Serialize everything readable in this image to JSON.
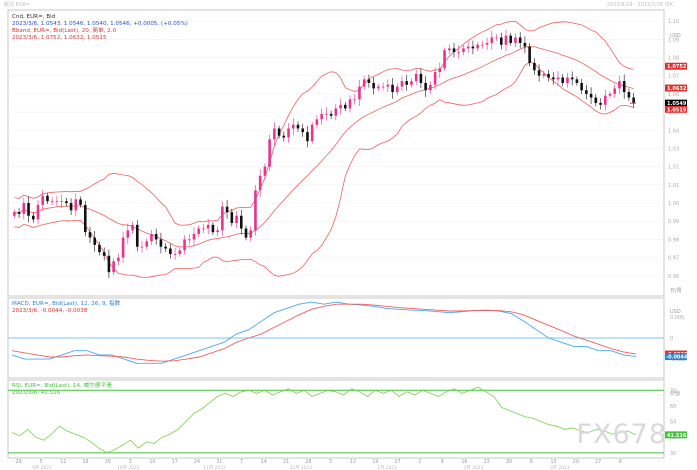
{
  "header": {
    "top_left": "概况 EUR=",
    "top_right": "2022/8/29 - 2023/2/28 日K"
  },
  "main_panel": {
    "line1": "Cnd, EUR=, Bid",
    "line2": "2023/3/6, 1.0543, 1.0546, 1.0540, 1.0546, +0.0005, (+0.05%)",
    "line3": "Bband, EUR=, Bid(Last), 20, 简单, 2.0",
    "line4": "2023/3/6, 1.0752, 1.0632, 1.0515",
    "axis_unit": "USD",
    "price_tags": [
      {
        "label": "1.0752",
        "value": 1.0752,
        "color": "#e03030"
      },
      {
        "label": "1.0632",
        "value": 1.0632,
        "color": "#e03030"
      },
      {
        "label": "1.0549",
        "value": 1.0549,
        "color": "#000000"
      },
      {
        "label": "1.0515",
        "value": 1.0515,
        "color": "#e03030"
      }
    ],
    "corner_label": "日/周"
  },
  "macd_panel": {
    "line1": "MACD, EUR=, Bid(Last), 12, 26, 9, 指数",
    "line2": "2023/3/6, -0.0044, -0.0038",
    "axis_unit": "USD",
    "axis_ticks": [
      "0.005",
      "0",
      "-0.005"
    ],
    "tags": [
      {
        "label": "-0.0038",
        "value": -0.0038,
        "color": "#e03030"
      },
      {
        "label": "-0.0044",
        "value": -0.0044,
        "color": "#2a7fd8"
      }
    ]
  },
  "rsi_panel": {
    "line1": "RSI, EUR=, Bid(Last), 14, 威尔德平滑",
    "line2": "2023/3/6, 41.516",
    "axis_unit": "价值",
    "axis_ticks": [
      "70",
      "60",
      "50",
      "40",
      "30"
    ],
    "tag": {
      "label": "41.516",
      "value": 41.516,
      "color": "#44c23a"
    }
  },
  "x_axis": {
    "day_ticks": [
      "29",
      "5",
      "12",
      "19",
      "26",
      "3",
      "10",
      "17",
      "24",
      "31",
      "7",
      "14",
      "21",
      "28",
      "5",
      "12",
      "19",
      "27",
      "2",
      "9",
      "16",
      "23",
      "30",
      "6",
      "13",
      "20",
      "27",
      "6"
    ],
    "month_labels": [
      "9月 2022",
      "10月 2022",
      "11月 2022",
      "12月 2022",
      "1月 2023",
      "2月 2023",
      "3月 2023"
    ]
  },
  "watermark": "FX678",
  "colors": {
    "up": "#e8338f",
    "down": "#111111",
    "band": "#f06060",
    "macd": "#4aa8f0",
    "signal": "#f06060",
    "rsi": "#7ad04a",
    "rsi_level": "#44c23a"
  },
  "chart_data": [
    {
      "type": "candlestick",
      "series_name": "EUR=",
      "y_range": [
        0.95,
        1.105
      ],
      "y_ticks": [
        1.1,
        1.09,
        1.08,
        1.07,
        1.06,
        1.05,
        1.04,
        1.03,
        1.02,
        1.01,
        1.0,
        0.99,
        0.98,
        0.97,
        0.96
      ],
      "closes": [
        0.995,
        0.994,
        1.0,
        0.993,
        0.991,
        0.999,
        1.004,
        1.001,
        1.001,
        1.001,
        1.001,
        1.0,
        0.996,
        1.002,
        0.999,
        0.984,
        0.981,
        0.977,
        0.973,
        0.971,
        0.962,
        0.968,
        0.97,
        0.981,
        0.985,
        0.988,
        0.976,
        0.976,
        0.979,
        0.983,
        0.98,
        0.976,
        0.975,
        0.972,
        0.972,
        0.974,
        0.98,
        0.98,
        0.983,
        0.986,
        0.986,
        0.988,
        0.984,
        0.985,
        0.998,
        0.995,
        0.989,
        0.993,
        0.986,
        0.981,
        0.985,
        1.007,
        1.015,
        1.02,
        1.035,
        1.041,
        1.037,
        1.036,
        1.041,
        1.043,
        1.041,
        1.039,
        1.034,
        1.043,
        1.046,
        1.049,
        1.049,
        1.048,
        1.052,
        1.054,
        1.052,
        1.057,
        1.057,
        1.064,
        1.068,
        1.066,
        1.063,
        1.064,
        1.064,
        1.065,
        1.061,
        1.064,
        1.067,
        1.065,
        1.067,
        1.071,
        1.066,
        1.062,
        1.065,
        1.072,
        1.074,
        1.084,
        1.085,
        1.083,
        1.083,
        1.085,
        1.086,
        1.085,
        1.087,
        1.087,
        1.088,
        1.091,
        1.091,
        1.087,
        1.092,
        1.088,
        1.091,
        1.088,
        1.086,
        1.077,
        1.073,
        1.07,
        1.071,
        1.069,
        1.068,
        1.069,
        1.066,
        1.069,
        1.068,
        1.066,
        1.062,
        1.06,
        1.058,
        1.055,
        1.054,
        1.059,
        1.06,
        1.063,
        1.067,
        1.061,
        1.058,
        1.055
      ],
      "upper_band_last": 1.0752,
      "middle_band_last": 1.0632,
      "lower_band_last": 1.0515
    },
    {
      "type": "line",
      "title": "MACD",
      "y_range": [
        -0.009,
        0.009
      ],
      "series": [
        {
          "name": "MACD",
          "values": [
            -0.004,
            -0.005,
            -0.005,
            -0.005,
            -0.004,
            -0.003,
            -0.003,
            -0.004,
            -0.004,
            -0.005,
            -0.006,
            -0.006,
            -0.006,
            -0.005,
            -0.004,
            -0.003,
            -0.002,
            -0.001,
            0.001,
            0.002,
            0.004,
            0.006,
            0.007,
            0.008,
            0.0085,
            0.008,
            0.0085,
            0.008,
            0.0078,
            0.0075,
            0.007,
            0.0068,
            0.0066,
            0.0065,
            0.0063,
            0.006,
            0.0062,
            0.0065,
            0.0066,
            0.0064,
            0.0058,
            0.004,
            0.002,
            0.0,
            -0.001,
            -0.002,
            -0.002,
            -0.003,
            -0.003,
            -0.004,
            -0.0044
          ]
        },
        {
          "name": "Signal",
          "values": [
            -0.003,
            -0.0035,
            -0.004,
            -0.0045,
            -0.0045,
            -0.0042,
            -0.004,
            -0.0042,
            -0.0043,
            -0.0045,
            -0.005,
            -0.0053,
            -0.0055,
            -0.0054,
            -0.005,
            -0.0045,
            -0.0035,
            -0.0025,
            -0.001,
            0.0,
            0.001,
            0.0025,
            0.004,
            0.0055,
            0.0068,
            0.0075,
            0.008,
            0.008,
            0.008,
            0.0078,
            0.0075,
            0.0072,
            0.007,
            0.0068,
            0.0066,
            0.0064,
            0.0064,
            0.0065,
            0.0065,
            0.0065,
            0.0062,
            0.0055,
            0.0042,
            0.003,
            0.0018,
            0.0005,
            -0.0005,
            -0.0015,
            -0.0025,
            -0.0033,
            -0.0038
          ]
        }
      ]
    },
    {
      "type": "line",
      "title": "RSI",
      "y_range": [
        28,
        74
      ],
      "levels": [
        70,
        30
      ],
      "values": [
        43,
        41,
        45,
        40,
        38,
        42,
        47,
        44,
        42,
        40,
        37,
        33,
        30,
        32,
        35,
        38,
        33,
        37,
        36,
        40,
        42,
        45,
        50,
        55,
        58,
        62,
        66,
        68,
        66,
        69,
        70,
        68,
        70,
        67,
        69,
        71,
        68,
        70,
        66,
        68,
        70,
        69,
        67,
        71,
        69,
        66,
        70,
        68,
        70,
        66,
        69,
        67,
        70,
        68,
        66,
        69,
        71,
        68,
        70,
        72,
        69,
        66,
        59,
        57,
        55,
        53,
        52,
        50,
        48,
        47,
        45,
        46,
        44,
        43,
        45,
        44,
        42,
        43,
        44,
        41.5
      ]
    }
  ]
}
